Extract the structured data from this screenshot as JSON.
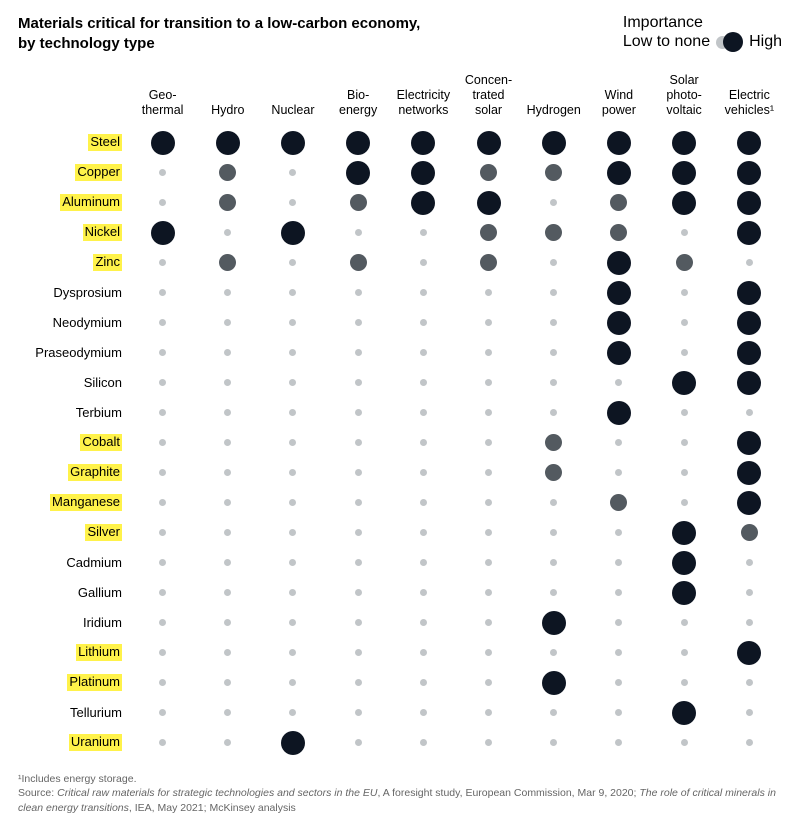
{
  "title": "Materials critical for transition to a low-carbon economy, by technology type",
  "legend": {
    "heading": "Importance",
    "low_label": "Low to none",
    "high_label": "High"
  },
  "footnote": "¹Includes energy storage.",
  "source_prefix": "Source: ",
  "source_1_italic": "Critical raw materials for strategic technologies and sectors in the EU",
  "source_1_rest": ", A foresight study, European Commission, Mar 9, 2020; ",
  "source_2_italic": "The role of critical minerals in clean energy transitions",
  "source_2_rest": ", IEA, May 2021; McKinsey analysis",
  "chart": {
    "type": "dot-matrix",
    "background_color": "#ffffff",
    "highlight_color": "#fff24a",
    "dot_levels": {
      "1": {
        "size": 7,
        "color": "#c1c5c8"
      },
      "2": {
        "size": 17,
        "color": "#535a60"
      },
      "3": {
        "size": 24,
        "color": "#0d1522"
      }
    },
    "columns": [
      {
        "label": "Geo-\nthermal"
      },
      {
        "label": "Hydro"
      },
      {
        "label": "Nuclear"
      },
      {
        "label": "Bio-\nenergy"
      },
      {
        "label": "Electricity\nnetworks"
      },
      {
        "label": "Concen-\ntrated\nsolar"
      },
      {
        "label": "Hydrogen"
      },
      {
        "label": "Wind\npower"
      },
      {
        "label": "Solar\nphoto-\nvoltaic"
      },
      {
        "label": "Electric\nvehicles¹"
      }
    ],
    "rows": [
      {
        "label": "Steel",
        "highlight": true,
        "values": [
          3,
          3,
          3,
          3,
          3,
          3,
          3,
          3,
          3,
          3
        ]
      },
      {
        "label": "Copper",
        "highlight": true,
        "values": [
          1,
          2,
          1,
          3,
          3,
          2,
          2,
          3,
          3,
          3
        ]
      },
      {
        "label": "Aluminum",
        "highlight": true,
        "values": [
          1,
          2,
          1,
          2,
          3,
          3,
          1,
          2,
          3,
          3
        ]
      },
      {
        "label": "Nickel",
        "highlight": true,
        "values": [
          3,
          1,
          3,
          1,
          1,
          2,
          2,
          2,
          1,
          3
        ]
      },
      {
        "label": "Zinc",
        "highlight": true,
        "values": [
          1,
          2,
          1,
          2,
          1,
          2,
          1,
          3,
          2,
          1
        ]
      },
      {
        "label": "Dysprosium",
        "highlight": false,
        "values": [
          1,
          1,
          1,
          1,
          1,
          1,
          1,
          3,
          1,
          3
        ]
      },
      {
        "label": "Neodymium",
        "highlight": false,
        "values": [
          1,
          1,
          1,
          1,
          1,
          1,
          1,
          3,
          1,
          3
        ]
      },
      {
        "label": "Praseodymium",
        "highlight": false,
        "values": [
          1,
          1,
          1,
          1,
          1,
          1,
          1,
          3,
          1,
          3
        ]
      },
      {
        "label": "Silicon",
        "highlight": false,
        "values": [
          1,
          1,
          1,
          1,
          1,
          1,
          1,
          1,
          3,
          3
        ]
      },
      {
        "label": "Terbium",
        "highlight": false,
        "values": [
          1,
          1,
          1,
          1,
          1,
          1,
          1,
          3,
          1,
          1
        ]
      },
      {
        "label": "Cobalt",
        "highlight": true,
        "values": [
          1,
          1,
          1,
          1,
          1,
          1,
          2,
          1,
          1,
          3
        ]
      },
      {
        "label": "Graphite",
        "highlight": true,
        "values": [
          1,
          1,
          1,
          1,
          1,
          1,
          2,
          1,
          1,
          3
        ]
      },
      {
        "label": "Manganese",
        "highlight": true,
        "values": [
          1,
          1,
          1,
          1,
          1,
          1,
          1,
          2,
          1,
          3
        ]
      },
      {
        "label": "Silver",
        "highlight": true,
        "values": [
          1,
          1,
          1,
          1,
          1,
          1,
          1,
          1,
          3,
          2
        ]
      },
      {
        "label": "Cadmium",
        "highlight": false,
        "values": [
          1,
          1,
          1,
          1,
          1,
          1,
          1,
          1,
          3,
          1
        ]
      },
      {
        "label": "Gallium",
        "highlight": false,
        "values": [
          1,
          1,
          1,
          1,
          1,
          1,
          1,
          1,
          3,
          1
        ]
      },
      {
        "label": "Iridium",
        "highlight": false,
        "values": [
          1,
          1,
          1,
          1,
          1,
          1,
          3,
          1,
          1,
          1
        ]
      },
      {
        "label": "Lithium",
        "highlight": true,
        "values": [
          1,
          1,
          1,
          1,
          1,
          1,
          1,
          1,
          1,
          3
        ]
      },
      {
        "label": "Platinum",
        "highlight": true,
        "values": [
          1,
          1,
          1,
          1,
          1,
          1,
          3,
          1,
          1,
          1
        ]
      },
      {
        "label": "Tellurium",
        "highlight": false,
        "values": [
          1,
          1,
          1,
          1,
          1,
          1,
          1,
          1,
          3,
          1
        ]
      },
      {
        "label": "Uranium",
        "highlight": true,
        "values": [
          1,
          1,
          3,
          1,
          1,
          1,
          1,
          1,
          1,
          1
        ]
      }
    ]
  }
}
